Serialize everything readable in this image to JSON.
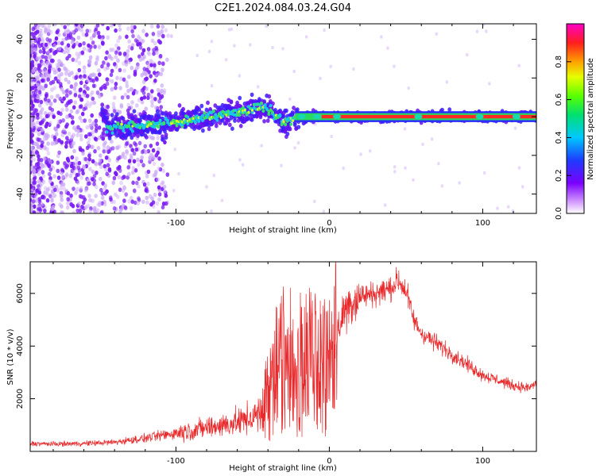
{
  "title": "C2E1.2024.084.03.24.G04",
  "colors": {
    "snr_line": "#e8292b",
    "axis": "#000000"
  },
  "chart_data": [
    {
      "type": "heatmap",
      "xlabel": "Height of straight line (km)",
      "ylabel": "Frequency (Hz)",
      "xlim": [
        -195,
        135
      ],
      "ylim": [
        -50,
        48
      ],
      "xticks": [
        -100,
        0,
        100
      ],
      "yticks": [
        -40,
        -20,
        0,
        20,
        40
      ],
      "colorbar": {
        "label": "Normalized spectral amplitude",
        "range": [
          0,
          1
        ],
        "ticks": [
          0.0,
          0.2,
          0.4,
          0.6,
          0.8
        ],
        "colormap": "rainbow (white-violet-blue-cyan-green-yellow-orange-red-magenta)"
      },
      "ridge": [
        {
          "x": -145,
          "y": -6
        },
        {
          "x": -130,
          "y": -5
        },
        {
          "x": -115,
          "y": -4
        },
        {
          "x": -100,
          "y": -3
        },
        {
          "x": -85,
          "y": -1
        },
        {
          "x": -70,
          "y": 1
        },
        {
          "x": -55,
          "y": 3
        },
        {
          "x": -45,
          "y": 5
        },
        {
          "x": -38,
          "y": 3
        },
        {
          "x": -30,
          "y": -3
        },
        {
          "x": -20,
          "y": -1
        },
        {
          "x": -10,
          "y": 0
        },
        {
          "x": 0,
          "y": 0
        },
        {
          "x": 50,
          "y": 0
        },
        {
          "x": 100,
          "y": 0
        },
        {
          "x": 135,
          "y": 0
        }
      ]
    },
    {
      "type": "line",
      "xlabel": "Height of straight line (km)",
      "ylabel": "SNR (10 * v/v)",
      "xlim": [
        -195,
        135
      ],
      "ylim": [
        0,
        7200
      ],
      "xticks": [
        -100,
        0,
        100
      ],
      "yticks": [
        2000,
        4000,
        6000
      ],
      "series": [
        {
          "x": [
            -195,
            -180,
            -160,
            -140,
            -120,
            -100,
            -80,
            -60,
            -45,
            -40,
            -35,
            -30,
            -25,
            -20,
            -15,
            -10,
            -5,
            0,
            5,
            10,
            15,
            20,
            30,
            40,
            45,
            50,
            55,
            60,
            70,
            80,
            90,
            100,
            110,
            120,
            130,
            135
          ],
          "y": [
            300,
            280,
            300,
            350,
            500,
            700,
            900,
            1100,
            1400,
            2200,
            3000,
            3600,
            3500,
            3300,
            3400,
            3300,
            3100,
            3200,
            4500,
            5400,
            5700,
            5900,
            6000,
            6200,
            6500,
            6100,
            5000,
            4500,
            4100,
            3700,
            3300,
            2900,
            2700,
            2500,
            2400,
            2600
          ]
        }
      ]
    }
  ]
}
